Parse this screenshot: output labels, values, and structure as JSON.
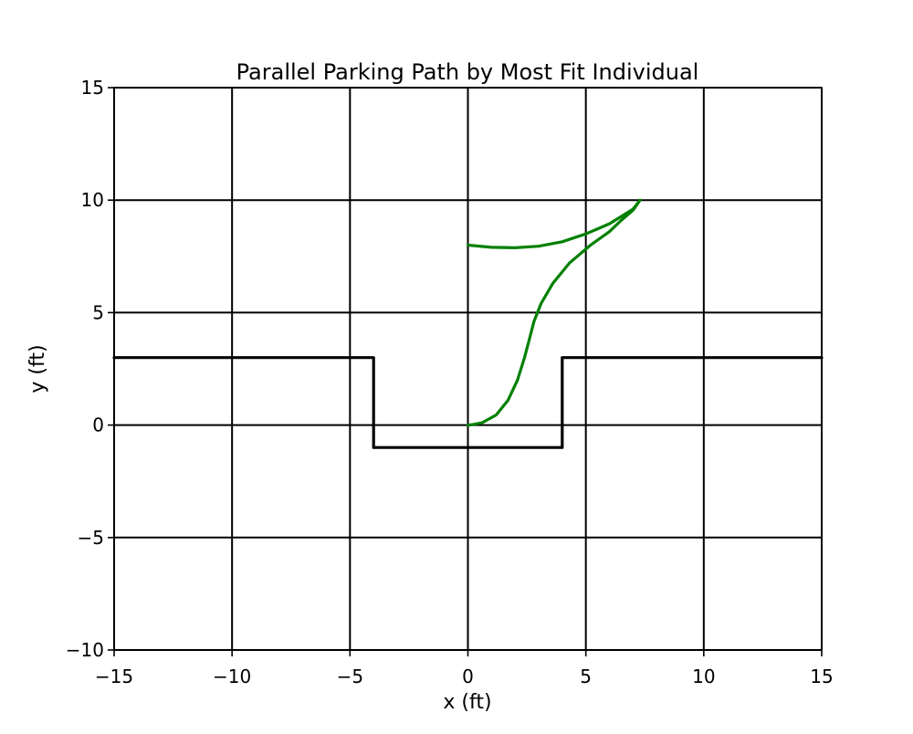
{
  "chart_data": {
    "type": "line",
    "title": "Parallel Parking Path by Most Fit Individual",
    "xlabel": "x (ft)",
    "ylabel": "y (ft)",
    "xlim": [
      -15,
      15
    ],
    "ylim": [
      -10,
      15
    ],
    "xticks": [
      -15,
      -10,
      -5,
      0,
      5,
      10,
      15
    ],
    "yticks": [
      -10,
      -5,
      0,
      5,
      10,
      15
    ],
    "xtick_labels": [
      "−15",
      "−10",
      "−5",
      "0",
      "5",
      "10",
      "15"
    ],
    "ytick_labels": [
      "−10",
      "−5",
      "0",
      "5",
      "10",
      "15"
    ],
    "grid": true,
    "legend": false,
    "series": [
      {
        "color": "#000000",
        "x": [
          -15,
          -4,
          -4,
          4,
          4,
          15
        ],
        "y": [
          3,
          3,
          -1,
          -1,
          3,
          3
        ]
      },
      {
        "color": "#008000",
        "x": [
          0,
          1,
          2,
          3,
          4,
          5,
          6,
          7,
          7.3,
          7.0,
          6.5,
          6.0,
          5.2,
          4.3,
          3.6,
          3.1,
          2.8,
          2.6,
          2.4,
          2.1,
          1.7,
          1.2,
          0.6,
          0.2,
          0
        ],
        "y": [
          8.0,
          7.9,
          7.88,
          7.95,
          8.15,
          8.5,
          8.95,
          9.6,
          10.0,
          9.55,
          9.1,
          8.6,
          8.0,
          7.2,
          6.3,
          5.4,
          4.6,
          3.8,
          3.0,
          2.0,
          1.1,
          0.45,
          0.1,
          0.02,
          0
        ]
      }
    ]
  }
}
